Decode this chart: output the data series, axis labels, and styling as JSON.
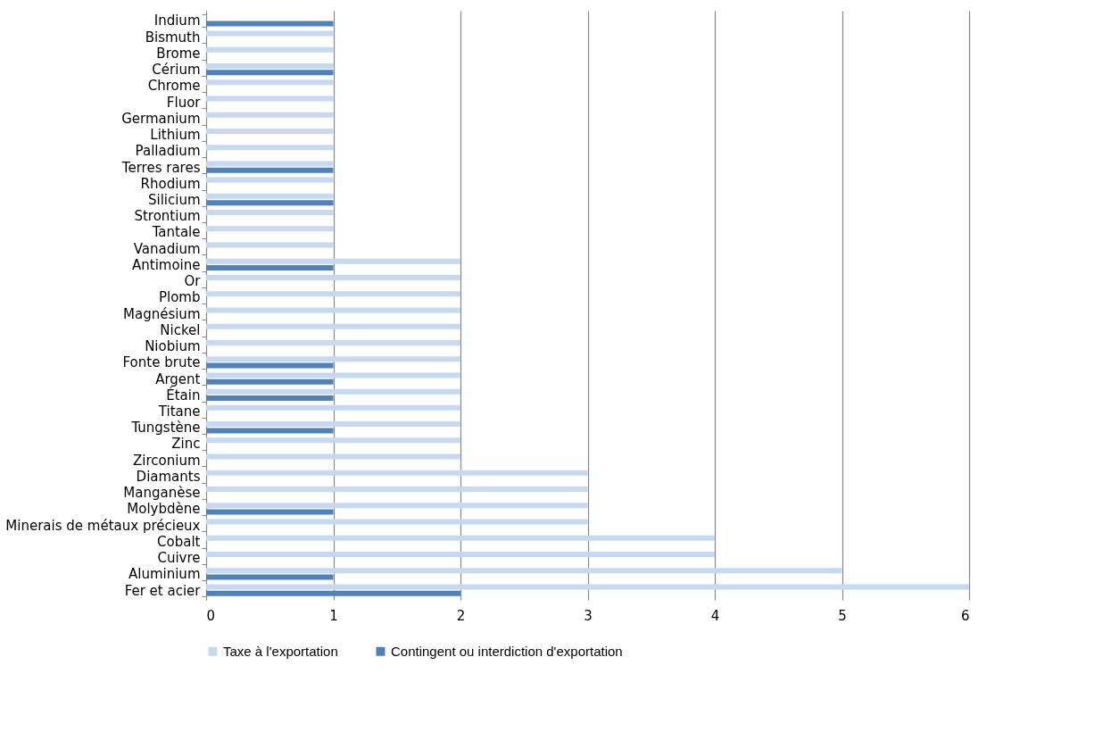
{
  "chart_data": {
    "type": "bar",
    "orientation": "horizontal",
    "categories": [
      "Indium",
      "Bismuth",
      "Brome",
      "Cérium",
      "Chrome",
      "Fluor",
      "Germanium",
      "Lithium",
      "Palladium",
      "Terres rares",
      "Rhodium",
      "Silicium",
      "Strontium",
      "Tantale",
      "Vanadium",
      "Antimoine",
      "Or",
      "Plomb",
      "Magnésium",
      "Nickel",
      "Niobium",
      "Fonte brute",
      "Argent",
      "Étain",
      "Titane",
      "Tungstène",
      "Zinc",
      "Zirconium",
      "Diamants",
      "Manganèse",
      "Molybdène",
      "Minerais de métaux précieux",
      "Cobalt",
      "Cuivre",
      "Aluminium",
      "Fer et acier"
    ],
    "series": [
      {
        "name": "Taxe à l'exportation",
        "color": "#c6d9f1",
        "values": [
          null,
          1,
          1,
          1,
          1,
          1,
          1,
          1,
          1,
          1,
          1,
          1,
          1,
          1,
          1,
          2,
          2,
          2,
          2,
          2,
          2,
          2,
          2,
          2,
          2,
          2,
          2,
          2,
          3,
          3,
          3,
          3,
          4,
          4,
          5,
          6
        ]
      },
      {
        "name": "Contingent ou interdiction d'exportation",
        "color": "#4f81bd",
        "values": [
          1,
          null,
          null,
          1,
          null,
          null,
          null,
          null,
          null,
          1,
          null,
          1,
          null,
          null,
          null,
          1,
          null,
          null,
          null,
          null,
          null,
          1,
          1,
          1,
          null,
          1,
          null,
          null,
          null,
          null,
          1,
          null,
          null,
          null,
          1,
          2
        ]
      }
    ],
    "xlim": [
      0,
      6
    ],
    "xticks": [
      0,
      1,
      2,
      3,
      4,
      5,
      6
    ],
    "grid": "x",
    "legend": "bottom"
  }
}
